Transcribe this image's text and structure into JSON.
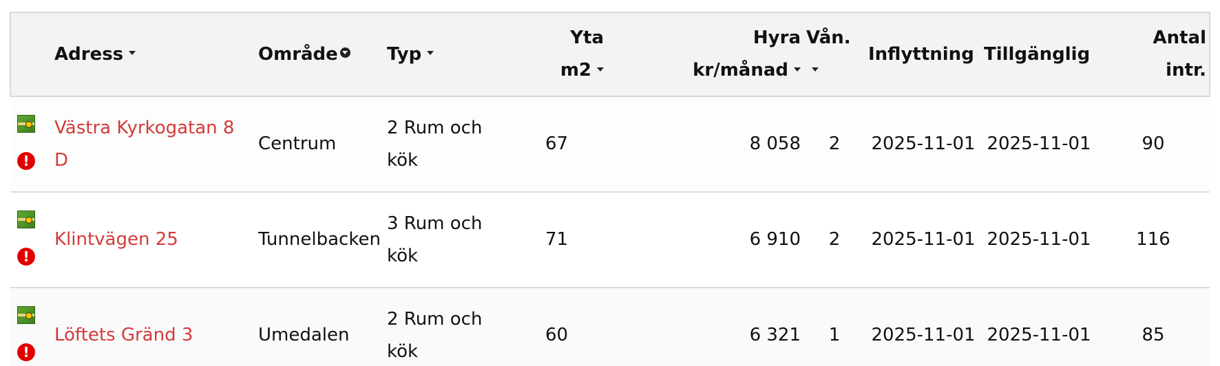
{
  "table": {
    "headers": {
      "address": "Adress",
      "area": "Område",
      "type": "Typ",
      "size_line1": "Yta",
      "size_line2": "m2",
      "rent_line1": "Hyra",
      "rent_line2": "kr/månad",
      "floor": "Vån.",
      "move_in": "Inflyttning",
      "available": "Tillgänglig",
      "interest_line1": "Antal",
      "interest_line2": "intr."
    },
    "rows": [
      {
        "address": "Västra Kyrkogatan 8 D",
        "area": "Centrum",
        "type": "2 Rum och kök",
        "size": "67",
        "rent": "8 058",
        "floor": "2",
        "move_in": "2025-11-01",
        "available": "2025-11-01",
        "interest": "90"
      },
      {
        "address": "Klintvägen 25",
        "area": "Tunnelbacken",
        "type": "3 Rum och kök",
        "size": "71",
        "rent": "6 910",
        "floor": "2",
        "move_in": "2025-11-01",
        "available": "2025-11-01",
        "interest": "116"
      },
      {
        "address": "Löftets Gränd 3",
        "area": "Umedalen",
        "type": "2 Rum och kök",
        "size": "60",
        "rent": "6 321",
        "floor": "1",
        "move_in": "2025-11-01",
        "available": "2025-11-01",
        "interest": "85"
      }
    ],
    "icons": {
      "map": "map-icon",
      "info": "info-icon"
    },
    "colors": {
      "link": "#d33a3a",
      "header_bg": "#f3f3f3",
      "info_icon": "#e00000",
      "map_icon": "#4f9a2a"
    }
  }
}
